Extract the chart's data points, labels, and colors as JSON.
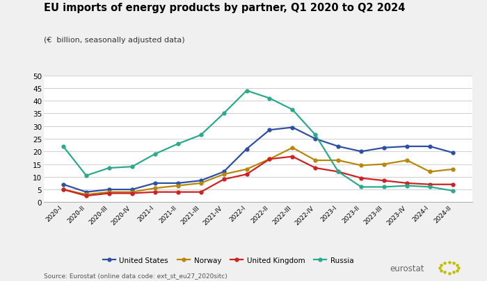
{
  "title": "EU imports of energy products by partner, Q1 2020 to Q2 2024",
  "subtitle": "(€  billion, seasonally adjusted data)",
  "source": "Source: Eurostat (online data code: ext_st_eu27_2020sitc)",
  "x_labels": [
    "2020-I",
    "2020-II",
    "2020-III",
    "2020-IV",
    "2021-I",
    "2021-II",
    "2021-III",
    "2021-IV",
    "2022-I",
    "2022-II",
    "2022-III",
    "2022-IV",
    "2023-I",
    "2023-II",
    "2023-III",
    "2023-IV",
    "2024-I",
    "2024-II"
  ],
  "united_states": [
    7.0,
    4.0,
    5.0,
    5.0,
    7.5,
    7.5,
    8.5,
    12.0,
    21.0,
    28.5,
    29.5,
    25.0,
    22.0,
    20.0,
    21.5,
    22.0,
    22.0,
    19.5
  ],
  "norway": [
    5.0,
    3.0,
    4.0,
    4.0,
    5.5,
    6.5,
    7.5,
    11.0,
    13.0,
    17.0,
    21.5,
    16.5,
    16.5,
    14.5,
    15.0,
    16.5,
    12.0,
    13.0
  ],
  "united_kingdom": [
    5.0,
    2.5,
    3.5,
    3.5,
    4.0,
    4.0,
    4.0,
    9.0,
    11.0,
    17.0,
    18.0,
    13.5,
    12.0,
    9.5,
    8.5,
    7.5,
    7.0,
    7.0
  ],
  "russia": [
    22.0,
    10.5,
    13.5,
    14.0,
    19.0,
    23.0,
    26.5,
    35.0,
    44.0,
    41.0,
    36.5,
    26.5,
    12.0,
    6.0,
    6.0,
    6.5,
    6.0,
    4.5
  ],
  "colors": {
    "united_states": "#2e4fa3",
    "norway": "#b8860b",
    "united_kingdom": "#cc2222",
    "russia": "#2aaa8a"
  },
  "ylim": [
    0,
    50
  ],
  "yticks": [
    0,
    5,
    10,
    15,
    20,
    25,
    30,
    35,
    40,
    45,
    50
  ],
  "background_color": "#f0f0f0",
  "plot_background": "#ffffff",
  "grid_color": "#d0d0d0",
  "legend_labels": [
    "United States",
    "Norway",
    "United Kingdom",
    "Russia"
  ]
}
